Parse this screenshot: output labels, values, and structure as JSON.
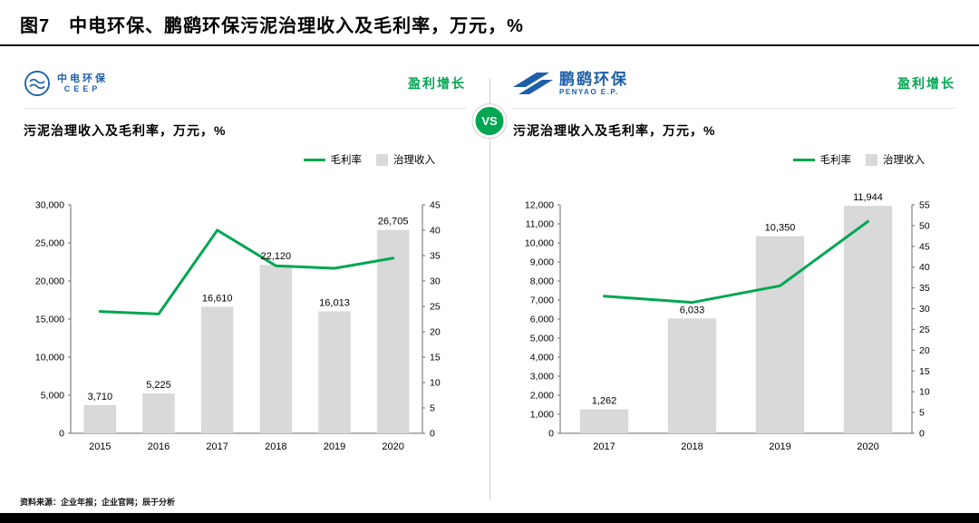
{
  "title": "图7　中电环保、鹏鹞环保污泥治理收入及毛利率，万元，%",
  "vs_label": "VS",
  "source": "资料来源：企业年报；企业官网；辰于分析",
  "colors": {
    "green": "#00A651",
    "bar": "#D9D9D9",
    "logo_blue": "#1D5FA9",
    "axis": "#6b6b6b"
  },
  "panels": [
    {
      "logo": {
        "name": "中电环保",
        "sub": "CEEP"
      },
      "tagline": "盈利增长",
      "subtitle": "污泥治理收入及毛利率，万元，%",
      "legend": {
        "line": "毛利率",
        "bar": "治理收入"
      }
    },
    {
      "logo": {
        "name": "鹏鹞环保",
        "sub": "PENYAO E.P."
      },
      "tagline": "盈利增长",
      "subtitle": "污泥治理收入及毛利率，万元，%",
      "legend": {
        "line": "毛利率",
        "bar": "治理收入"
      }
    }
  ],
  "chart_data": [
    {
      "type": "bar+line",
      "title": "污泥治理收入及毛利率，万元，%",
      "categories": [
        "2015",
        "2016",
        "2017",
        "2018",
        "2019",
        "2020"
      ],
      "series": [
        {
          "name": "治理收入",
          "type": "bar",
          "axis": "left",
          "values": [
            3710,
            5225,
            16610,
            22120,
            16013,
            26705
          ],
          "labels": [
            "3,710",
            "5,225",
            "16,610",
            "22,120",
            "16,013",
            "26,705"
          ]
        },
        {
          "name": "毛利率",
          "type": "line",
          "axis": "right",
          "values": [
            24,
            23.5,
            40,
            33,
            32.5,
            34.5
          ]
        }
      ],
      "y_left": {
        "min": 0,
        "max": 30000,
        "step": 5000
      },
      "y_right": {
        "min": 0,
        "max": 45,
        "step": 5
      },
      "grid": false,
      "legend_position": "top-right"
    },
    {
      "type": "bar+line",
      "title": "污泥治理收入及毛利率，万元，%",
      "categories": [
        "2017",
        "2018",
        "2019",
        "2020"
      ],
      "series": [
        {
          "name": "治理收入",
          "type": "bar",
          "axis": "left",
          "values": [
            1262,
            6033,
            10350,
            11944
          ],
          "labels": [
            "1,262",
            "6,033",
            "10,350",
            "11,944"
          ]
        },
        {
          "name": "毛利率",
          "type": "line",
          "axis": "right",
          "values": [
            33,
            31.5,
            35.5,
            51
          ]
        }
      ],
      "y_left": {
        "min": 0,
        "max": 12000,
        "step": 1000
      },
      "y_right": {
        "min": 0,
        "max": 55,
        "step": 5
      },
      "grid": false,
      "legend_position": "top-right"
    }
  ]
}
